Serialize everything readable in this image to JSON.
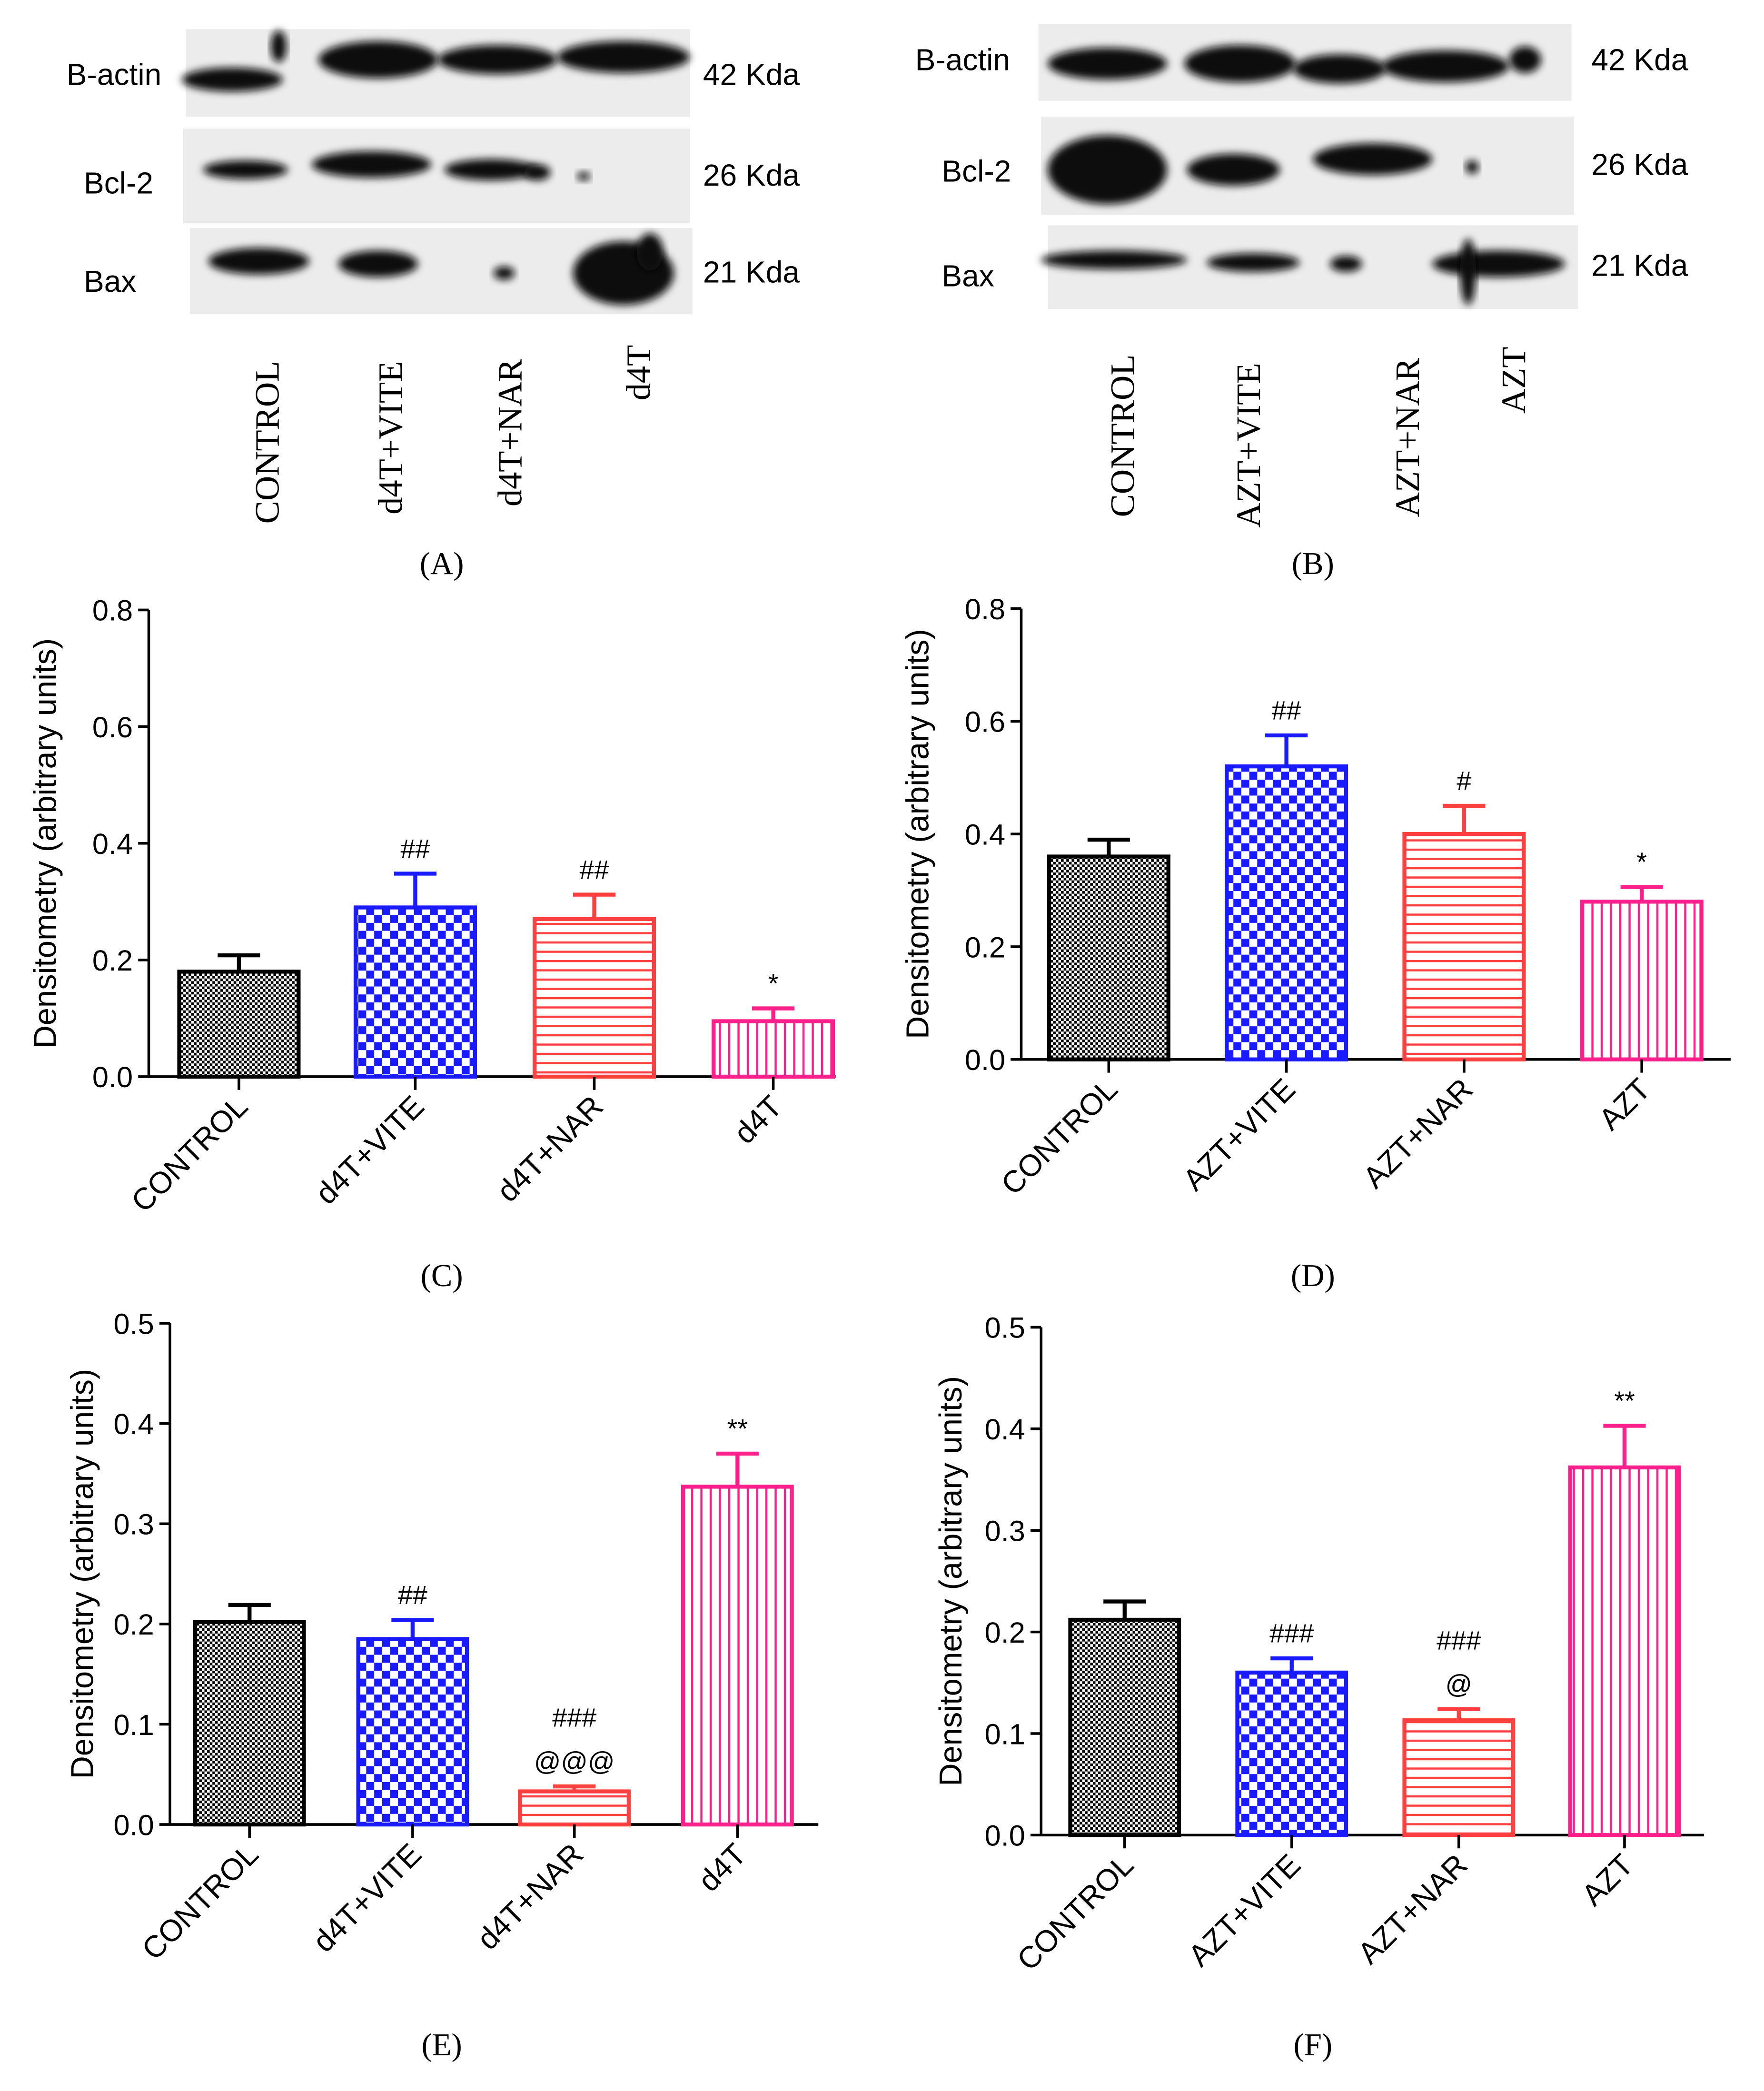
{
  "blots": [
    {
      "panel_label": "(A)",
      "rows": [
        {
          "protein": "B-actin",
          "size": "42 Kda"
        },
        {
          "protein": "Bcl-2",
          "size": "26 Kda"
        },
        {
          "protein": "Bax",
          "size": "21 Kda"
        }
      ],
      "lanes": [
        "CONTROL",
        "d4T+VITE",
        "d4T+NAR",
        "d4T"
      ]
    },
    {
      "panel_label": "(B)",
      "rows": [
        {
          "protein": "B-actin",
          "size": "42 Kda"
        },
        {
          "protein": "Bcl-2",
          "size": "26 Kda"
        },
        {
          "protein": "Bax",
          "size": "21 Kda"
        }
      ],
      "lanes": [
        "CONTROL",
        "AZT+VITE",
        "AZT+NAR",
        "AZT"
      ]
    }
  ],
  "colors": {
    "control": "#000000",
    "vite": "#1a1aff",
    "nar": "#ff4040",
    "drug": "#ff1f8a"
  },
  "chart_data": [
    {
      "type": "bar",
      "panel_label": "(C)",
      "ylabel": "Densitometry (arbitrary units)",
      "categories": [
        "CONTROL",
        "d4T+VITE",
        "d4T+NAR",
        "d4T"
      ],
      "values": [
        0.18,
        0.29,
        0.27,
        0.095
      ],
      "errors": [
        0.028,
        0.058,
        0.042,
        0.022
      ],
      "annotations": [
        [],
        [
          "##"
        ],
        [
          "##"
        ],
        [
          "*"
        ]
      ],
      "ylim": [
        0,
        0.8
      ],
      "yticks": [
        "0.0",
        "0.2",
        "0.4",
        "0.6",
        "0.8"
      ]
    },
    {
      "type": "bar",
      "panel_label": "(D)",
      "ylabel": "Densitometry (arbitrary units)",
      "categories": [
        "CONTROL",
        "AZT+VITE",
        "AZT+NAR",
        "AZT"
      ],
      "values": [
        0.36,
        0.52,
        0.4,
        0.28
      ],
      "errors": [
        0.03,
        0.055,
        0.05,
        0.026
      ],
      "annotations": [
        [],
        [
          "##"
        ],
        [
          "#"
        ],
        [
          "*"
        ]
      ],
      "ylim": [
        0,
        0.8
      ],
      "yticks": [
        "0.0",
        "0.2",
        "0.4",
        "0.6",
        "0.8"
      ]
    },
    {
      "type": "bar",
      "panel_label": "(E)",
      "ylabel": "Densitometry (arbitrary units)",
      "categories": [
        "CONTROL",
        "d4T+VITE",
        "d4T+NAR",
        "d4T"
      ],
      "values": [
        0.202,
        0.185,
        0.033,
        0.337
      ],
      "errors": [
        0.017,
        0.019,
        0.005,
        0.033
      ],
      "annotations": [
        [],
        [
          "##"
        ],
        [
          "###",
          "@@@"
        ],
        [
          "**"
        ]
      ],
      "ylim": [
        0,
        0.5
      ],
      "yticks": [
        "0.0",
        "0.1",
        "0.2",
        "0.3",
        "0.4",
        "0.5"
      ]
    },
    {
      "type": "bar",
      "panel_label": "(F)",
      "ylabel": "Densitometry (arbitrary units)",
      "categories": [
        "CONTROL",
        "AZT+VITE",
        "AZT+NAR",
        "AZT"
      ],
      "values": [
        0.212,
        0.16,
        0.113,
        0.362
      ],
      "errors": [
        0.018,
        0.014,
        0.011,
        0.041
      ],
      "annotations": [
        [],
        [
          "###"
        ],
        [
          "###",
          "@"
        ],
        [
          "**"
        ]
      ],
      "ylim": [
        0,
        0.5
      ],
      "yticks": [
        "0.0",
        "0.1",
        "0.2",
        "0.3",
        "0.4",
        "0.5"
      ]
    }
  ]
}
